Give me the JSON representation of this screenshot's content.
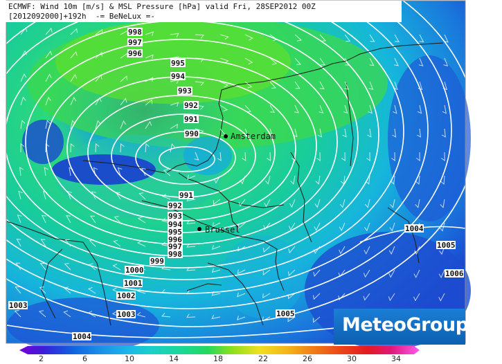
{
  "header": {
    "line1": "ECMWF: Wind 10m [m/s] & MSL Pressure [hPa] valid Fri, 28SEP2012 00Z",
    "line2": "[2012092000]+192h  -= BeNeLux =-"
  },
  "cities": [
    {
      "name": "Amsterdam"
    },
    {
      "name": "Brussel"
    }
  ],
  "isobar_labels": [
    "998",
    "997",
    "996",
    "995",
    "994",
    "993",
    "992",
    "991",
    "990",
    "991",
    "992",
    "993",
    "994",
    "995",
    "996",
    "997",
    "998",
    "999",
    "1000",
    "1001",
    "1002",
    "1003",
    "1003",
    "1004",
    "1004",
    "1005",
    "1005",
    "1006"
  ],
  "colorbar": {
    "ticks": [
      "2",
      "6",
      "10",
      "14",
      "18",
      "22",
      "26",
      "30",
      "34"
    ],
    "colors": [
      "#7a00d6",
      "#3a1ed8",
      "#1a3ed6",
      "#1060e0",
      "#1a8ee8",
      "#19b7ea",
      "#1ad0c8",
      "#1ad89a",
      "#24d85e",
      "#48dc2a",
      "#8ae01c",
      "#c8e418",
      "#f0e020",
      "#f4b418",
      "#f08018",
      "#ec4818",
      "#e41a22",
      "#e0187a",
      "#e01ac8",
      "#ff5cf0"
    ]
  },
  "logo": {
    "text": "MeteoGroup"
  },
  "palette": {
    "background": "#ffffff",
    "isobar": "#ffffff",
    "border": "#1a1a1a",
    "accent_logo": "#1a7fd6"
  }
}
